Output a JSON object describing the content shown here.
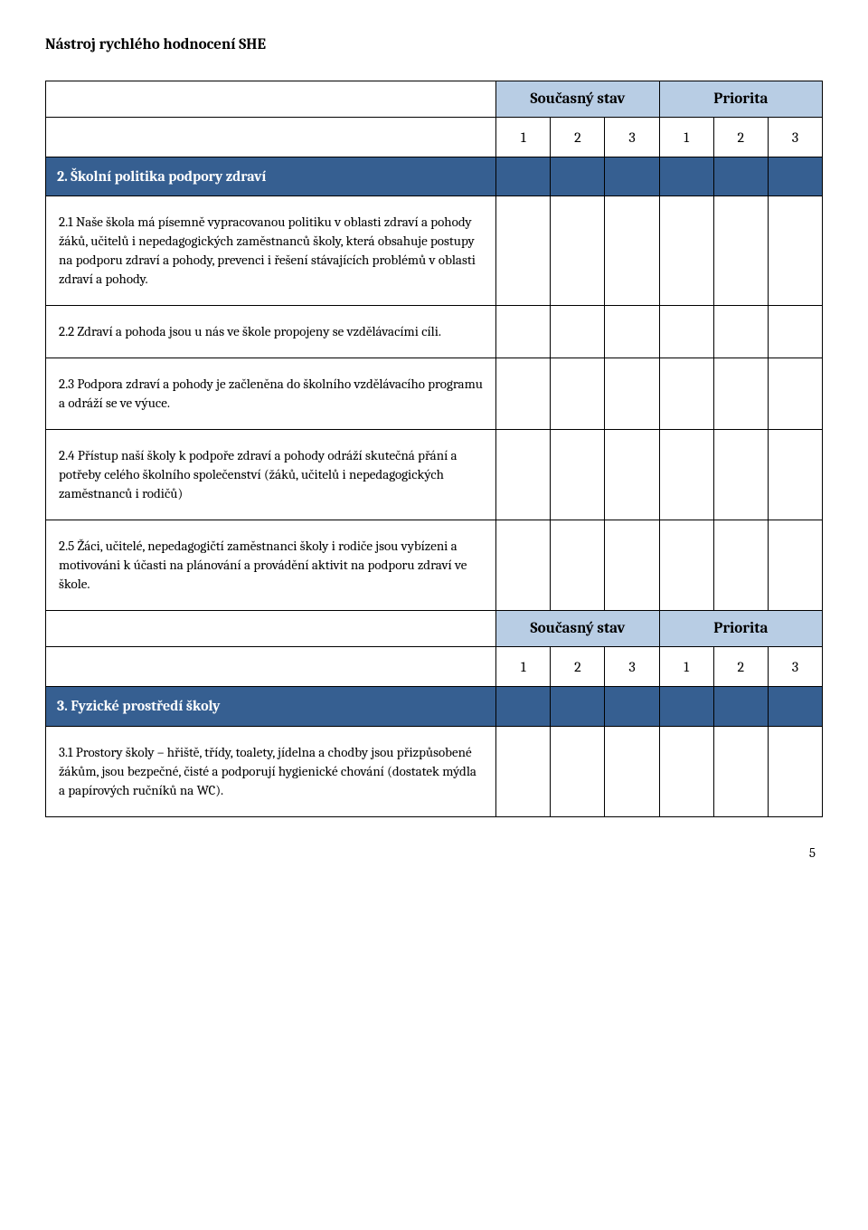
{
  "doc_title": "Nástroj rychlého hodnocení SHE",
  "page_number": "5",
  "colors": {
    "header_bg": "#b8cde4",
    "section_bg": "#365f91",
    "section_fg": "#ffffff",
    "border": "#000000",
    "page_bg": "#ffffff"
  },
  "typography": {
    "font_family": "Cambria, Georgia, serif",
    "header_fontsize": 17,
    "body_fontsize": 15,
    "header_bold": true
  },
  "column_headers": {
    "group1": "Současný stav",
    "group2": "Priorita",
    "nums": [
      "1",
      "2",
      "3",
      "1",
      "2",
      "3"
    ]
  },
  "sections": [
    {
      "title": "2. Školní politika podpory zdraví",
      "items": [
        "2.1 Naše škola má písemně vypracovanou politiku v oblasti zdraví a pohody žáků, učitelů i nepedagogických zaměstnanců školy, která obsahuje postupy na podporu zdraví a pohody, prevenci i řešení stávajících problémů v oblasti zdraví a pohody.",
        "2.2 Zdraví a pohoda jsou u nás ve škole propojeny se vzdělávacími cíli.",
        "2.3 Podpora zdraví a pohody je začleněna do školního vzdělávacího programu a odráží se ve výuce.",
        "2.4 Přístup naší školy k podpoře zdraví a pohody odráží skutečná přání a potřeby celého školního společenství (žáků, učitelů i nepedagogických zaměstnanců i rodičů)",
        "2.5 Žáci, učitelé, nepedagogičtí zaměstnanci školy i rodiče jsou vybízeni a motivováni k účasti na plánování a provádění aktivit na podporu zdraví ve škole."
      ]
    },
    {
      "title": "3. Fyzické prostředí školy",
      "items": [
        "3.1 Prostory školy – hřiště, třídy, toalety, jídelna a chodby jsou přizpůsobené žákům, jsou bezpečné, čisté a podporují hygienické chování (dostatek mýdla a papírových ručníků na WC)."
      ]
    }
  ]
}
